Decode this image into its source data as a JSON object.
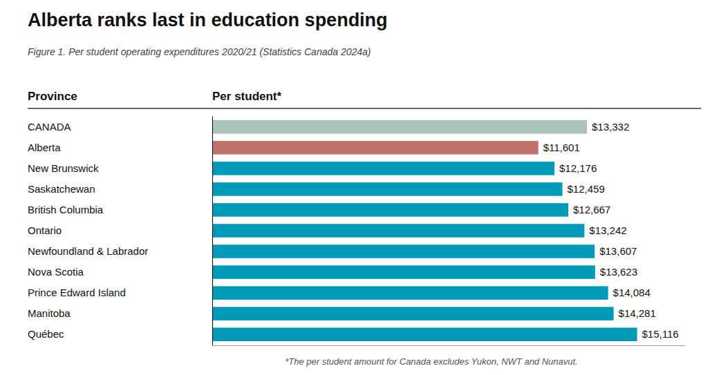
{
  "chart_data": {
    "type": "bar",
    "orientation": "horizontal",
    "title": "Alberta ranks last in education spending",
    "subtitle": "Figure 1. Per student operating expenditures 2020/21 (Statistics Canada 2024a)",
    "ylabel": "Province",
    "xlabel": "Per student*",
    "annotations": [
      "*The per student amount for Canada excludes Yukon, NWT and Nunavut."
    ],
    "categories": [
      "CANADA",
      "Alberta",
      "New Brunswick",
      "Saskatchewan",
      "British Columbia",
      "Ontario",
      "Newfoundland & Labrador",
      "Nova Scotia",
      "Prince Edward Island",
      "Manitoba",
      "Québec"
    ],
    "values": [
      13332,
      11601,
      12176,
      12459,
      12667,
      13242,
      13607,
      13623,
      14084,
      14281,
      15116
    ],
    "value_labels": [
      "$13,332",
      "$11,601",
      "$12,176",
      "$12,459",
      "$12,667",
      "$13,242",
      "$13,607",
      "$13,623",
      "$14,084",
      "$14,281",
      "$15,116"
    ],
    "colors": [
      "#a8c5b8",
      "#c0716a",
      "#0099b8",
      "#0099b8",
      "#0099b8",
      "#0099b8",
      "#0099b8",
      "#0099b8",
      "#0099b8",
      "#0099b8",
      "#0099b8"
    ],
    "data_labels": true,
    "xlim": [
      0,
      16800
    ],
    "tick_labels": "y",
    "grid": false
  }
}
